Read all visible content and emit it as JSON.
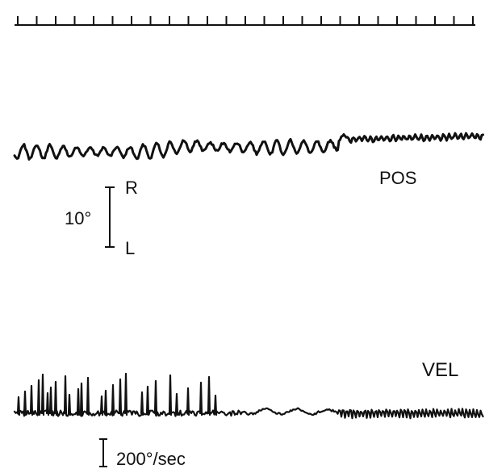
{
  "chart_data": {
    "type": "line",
    "title": "",
    "timing_marks": {
      "count": 25
    },
    "traces": [
      {
        "label": "POS",
        "unit": "deg",
        "scale_label": "10°",
        "direction_labels": [
          "R",
          "L"
        ]
      },
      {
        "label": "VEL",
        "unit": "deg/sec",
        "scale_label": "200°/sec"
      }
    ]
  }
}
